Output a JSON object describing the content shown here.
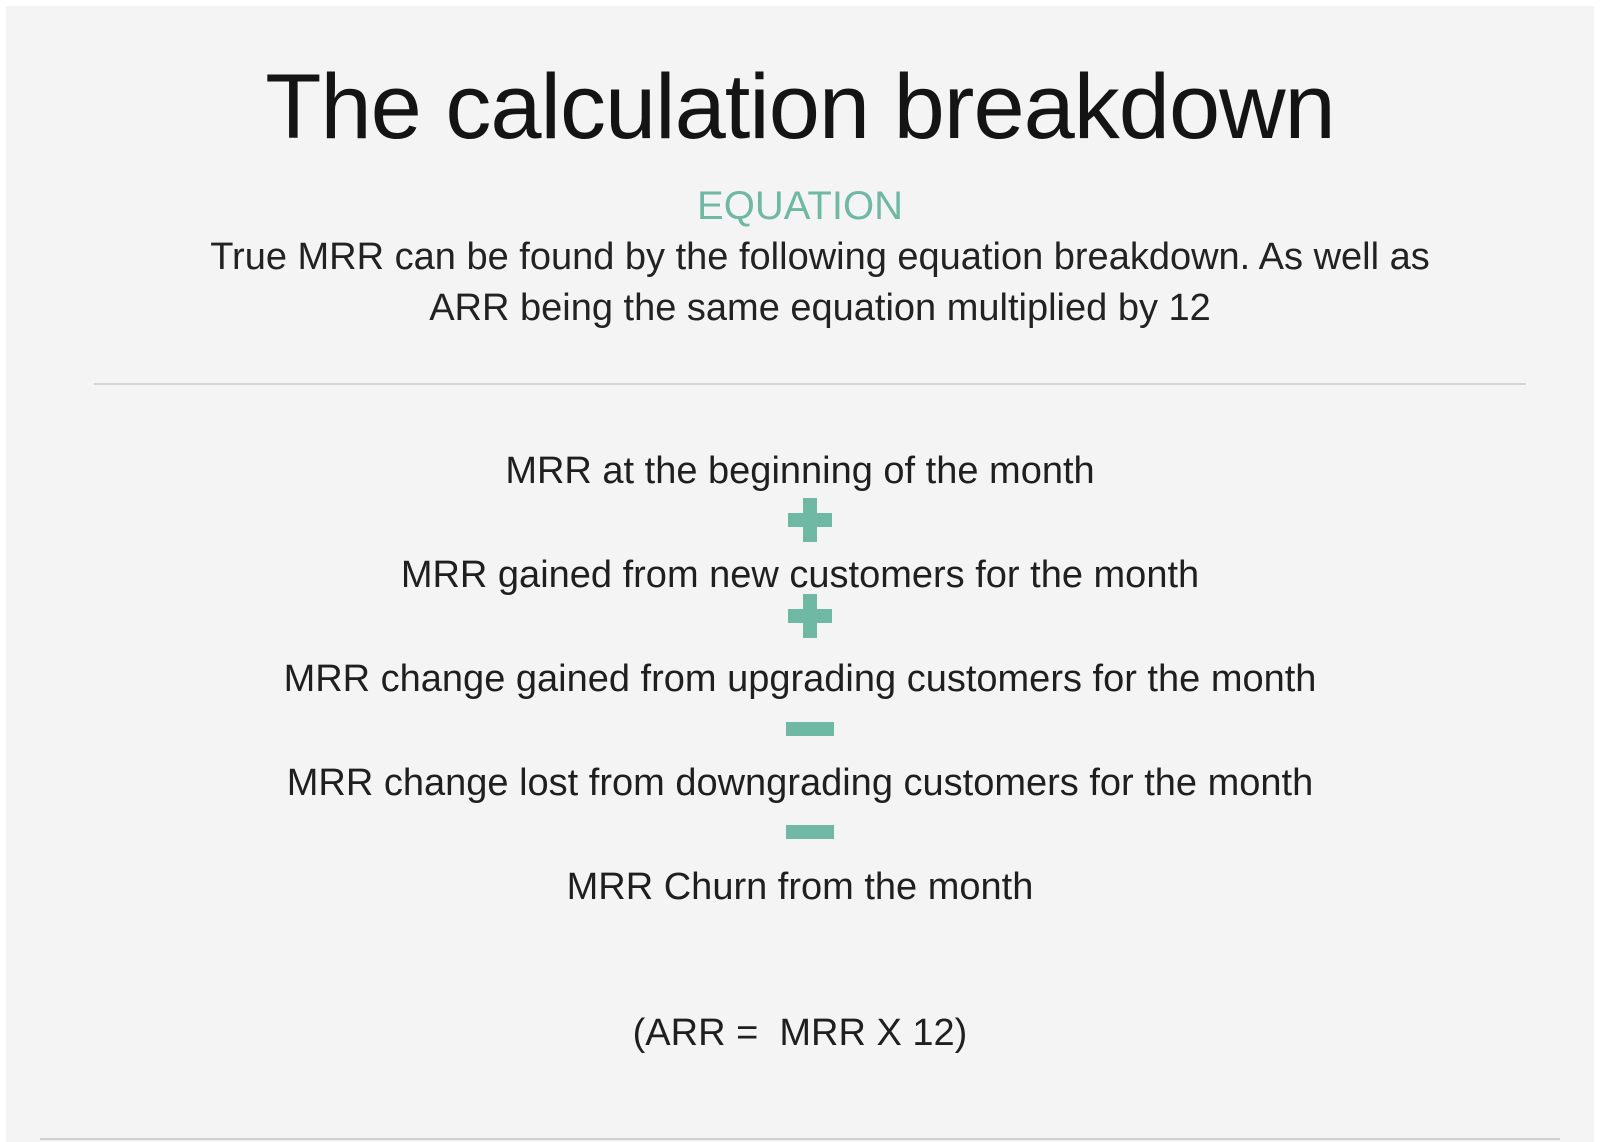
{
  "title": "The calculation breakdown",
  "section_label": "EQUATION",
  "intro": "True MRR can be found by the following equation breakdown. As well as ARR being the same equation multiplied by 12",
  "equation": {
    "terms": [
      "MRR at the beginning of the month",
      "MRR gained from new customers for the month",
      "MRR change gained from upgrading customers for the month",
      "MRR change lost from downgrading customers for the month",
      "MRR Churn from the month"
    ],
    "operators": [
      "plus-icon",
      "plus-icon",
      "minus-icon",
      "minus-icon"
    ]
  },
  "arr_formula": "(ARR =  MRR X 12)",
  "colors": {
    "accent": "#6fb8a3",
    "background": "#f4f4f4",
    "text": "#1f1f1f"
  }
}
